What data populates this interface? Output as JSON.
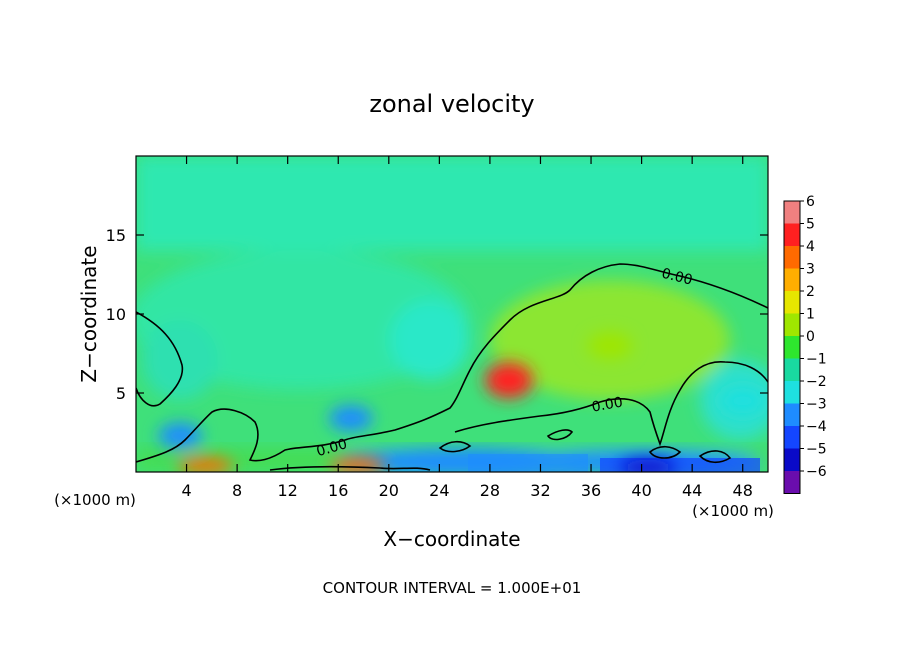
{
  "chart_data": {
    "type": "heatmap",
    "title": "zonal velocity",
    "xlabel": "X−coordinate",
    "ylabel": "Z−coordinate",
    "x_unit_left": "(×1000 m)",
    "x_unit_right": "(×1000 m)",
    "footer": "CONTOUR INTERVAL = 1.000E+01",
    "xlim": [
      0,
      50
    ],
    "ylim": [
      0,
      20
    ],
    "x_ticks": [
      "4",
      "8",
      "12",
      "16",
      "20",
      "24",
      "28",
      "32",
      "36",
      "40",
      "44",
      "48"
    ],
    "y_ticks": [
      "5",
      "10",
      "15"
    ],
    "colorbar_labels": [
      "6",
      "5",
      "4",
      "3",
      "2",
      "1",
      "0",
      "−1",
      "−2",
      "−3",
      "−4",
      "−5",
      "−6"
    ],
    "colorbar_colors": [
      "#f08080",
      "#ff2020",
      "#ff6a00",
      "#ffae00",
      "#e6e600",
      "#9fe600",
      "#2ee62e",
      "#19d9a0",
      "#1ee0e0",
      "#1e8cff",
      "#1446ff",
      "#0a0ac8",
      "#6a0dad"
    ],
    "contour_labels": [
      "0.00",
      "0.00",
      "0.00"
    ],
    "regions": [
      {
        "x": 29.5,
        "y": 5.8,
        "value": 5
      },
      {
        "x": 17.5,
        "y": 0.4,
        "value": 4.5
      },
      {
        "x": 5.5,
        "y": 0.4,
        "value": 4
      },
      {
        "x": 3.5,
        "y": 2.3,
        "value": -3
      },
      {
        "x": 17.0,
        "y": 3.4,
        "value": -2.5
      },
      {
        "x": 40.5,
        "y": 0.3,
        "value": -5
      },
      {
        "x": 37.5,
        "y": 8.0,
        "value": 1
      },
      {
        "x": 48.0,
        "y": 4.5,
        "value": -2
      }
    ]
  }
}
